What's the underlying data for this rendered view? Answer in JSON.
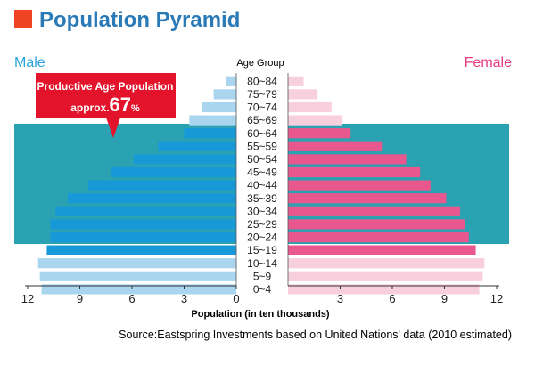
{
  "chart_data": {
    "type": "bar",
    "title": "Population Pyramid",
    "left_label": "Male",
    "right_label": "Female",
    "center_header": "Age Group",
    "xlabel": "Population (in ten thousands)",
    "source": "Source:Eastspring Investments based on United Nations' data (2010 estimated)",
    "annotation": {
      "line1": "Productive Age Population",
      "prefix": "approx.",
      "value": "67",
      "suffix": "%"
    },
    "xlim": [
      0,
      12
    ],
    "ticks": [
      "12",
      "9",
      "6",
      "3",
      "0",
      "3",
      "6",
      "9",
      "12"
    ],
    "categories": [
      "80~84",
      "75~79",
      "70~74",
      "65~69",
      "60~64",
      "55~59",
      "50~54",
      "45~49",
      "40~44",
      "35~39",
      "30~34",
      "25~29",
      "20~24",
      "15~19",
      "10~14",
      "5~9",
      "0~4"
    ],
    "productive_range": [
      "15~19",
      "60~64"
    ],
    "series": [
      {
        "name": "Male",
        "values": [
          0.6,
          1.3,
          2.0,
          2.7,
          3.0,
          4.5,
          5.9,
          7.2,
          8.5,
          9.7,
          10.4,
          10.7,
          10.7,
          10.9,
          11.4,
          11.3,
          11.2
        ]
      },
      {
        "name": "Female",
        "values": [
          0.9,
          1.7,
          2.5,
          3.1,
          3.6,
          5.4,
          6.8,
          7.6,
          8.2,
          9.1,
          9.9,
          10.2,
          10.4,
          10.8,
          11.3,
          11.2,
          11.0
        ]
      }
    ],
    "colors": {
      "title_square": "#ee4422",
      "title": "#2a7ab8",
      "male_dark": "#1799d8",
      "male_light": "#a9d5ee",
      "female_dark": "#e9578f",
      "female_light": "#f8cfdd",
      "band": "#2aa2b2",
      "male_label": "#2aa3dd",
      "female_label": "#e5397f",
      "callout": "#e3132b"
    }
  }
}
